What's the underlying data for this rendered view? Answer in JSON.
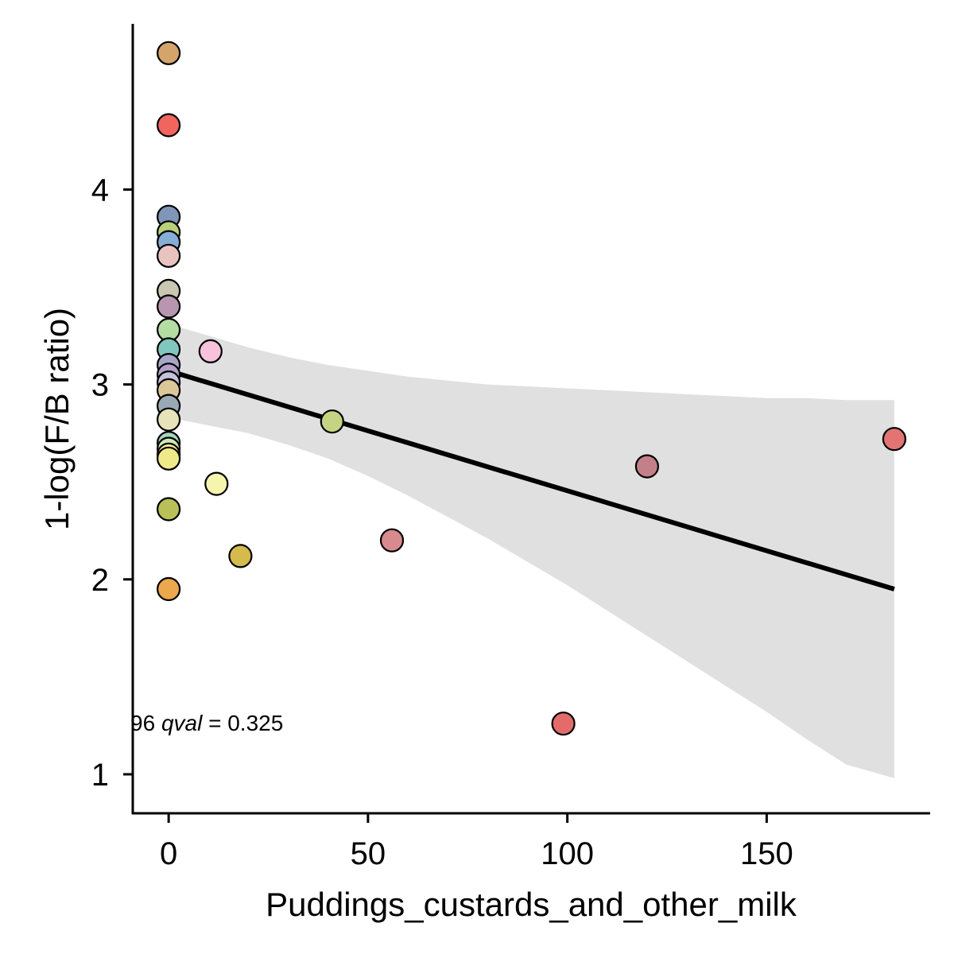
{
  "chart_data": {
    "type": "scatter",
    "xlabel": "Puddings_custards_and_other_milk",
    "ylabel": "1-log(F/B ratio)",
    "xlim": [
      -9,
      191
    ],
    "ylim": [
      0.8,
      4.85
    ],
    "x_ticks": [
      {
        "value": 0,
        "label": "0"
      },
      {
        "value": 50,
        "label": "50"
      },
      {
        "value": 100,
        "label": "100"
      },
      {
        "value": 150,
        "label": "150"
      }
    ],
    "y_ticks": [
      {
        "value": 1,
        "label": "1"
      },
      {
        "value": 2,
        "label": "2"
      },
      {
        "value": 3,
        "label": "3"
      },
      {
        "value": 4,
        "label": "4"
      }
    ],
    "grid": false,
    "legend": "none",
    "points": [
      {
        "x": 0,
        "y": 4.7,
        "color": "#D4A46A"
      },
      {
        "x": 0,
        "y": 4.33,
        "color": "#F0665E"
      },
      {
        "x": 0,
        "y": 3.86,
        "color": "#8096B8"
      },
      {
        "x": 0,
        "y": 3.78,
        "color": "#B9D27A"
      },
      {
        "x": 0,
        "y": 3.73,
        "color": "#86ADD6"
      },
      {
        "x": 0,
        "y": 3.66,
        "color": "#E9C3C0"
      },
      {
        "x": 0,
        "y": 3.48,
        "color": "#C9C7B2"
      },
      {
        "x": 0,
        "y": 3.4,
        "color": "#B896B0"
      },
      {
        "x": 0,
        "y": 3.28,
        "color": "#B4DDA4"
      },
      {
        "x": 0,
        "y": 3.18,
        "color": "#80C7C0"
      },
      {
        "x": 0,
        "y": 3.1,
        "color": "#A7A6C6"
      },
      {
        "x": 0,
        "y": 3.05,
        "color": "#B2A0C8"
      },
      {
        "x": 0,
        "y": 3.01,
        "color": "#C7C2DC"
      },
      {
        "x": 0,
        "y": 2.97,
        "color": "#DCC79A"
      },
      {
        "x": 0,
        "y": 2.89,
        "color": "#9AAAB4"
      },
      {
        "x": 0,
        "y": 2.82,
        "color": "#E6E2BA"
      },
      {
        "x": 0,
        "y": 2.7,
        "color": "#A6D6C2"
      },
      {
        "x": 0,
        "y": 2.67,
        "color": "#CFE8B0"
      },
      {
        "x": 0,
        "y": 2.64,
        "color": "#F7F39E"
      },
      {
        "x": 0,
        "y": 2.62,
        "color": "#F0E98A"
      },
      {
        "x": 0,
        "y": 2.36,
        "color": "#B9C058"
      },
      {
        "x": 0,
        "y": 1.95,
        "color": "#EBA84D"
      },
      {
        "x": 10.5,
        "y": 3.17,
        "color": "#F7C2DC"
      },
      {
        "x": 12,
        "y": 2.49,
        "color": "#F5F5AE"
      },
      {
        "x": 18,
        "y": 2.12,
        "color": "#D5BA4E"
      },
      {
        "x": 41,
        "y": 2.81,
        "color": "#C4D482"
      },
      {
        "x": 56,
        "y": 2.2,
        "color": "#D88A8E"
      },
      {
        "x": 99,
        "y": 1.26,
        "color": "#E36C6A"
      },
      {
        "x": 120,
        "y": 2.58,
        "color": "#C48088"
      },
      {
        "x": 182,
        "y": 2.72,
        "color": "#E37474"
      }
    ],
    "fit_line": {
      "x": [
        0,
        182
      ],
      "y": [
        3.07,
        1.95
      ],
      "color": "#000000"
    },
    "confidence_band": {
      "color": "#E0E0E0",
      "x": [
        0,
        10,
        20,
        30,
        40,
        50,
        60,
        70,
        80,
        90,
        100,
        110,
        120,
        130,
        140,
        150,
        160,
        170,
        182
      ],
      "upper": [
        3.31,
        3.25,
        3.19,
        3.14,
        3.1,
        3.07,
        3.04,
        3.02,
        3.0,
        2.99,
        2.98,
        2.97,
        2.96,
        2.95,
        2.94,
        2.93,
        2.93,
        2.92,
        2.92
      ],
      "lower": [
        2.83,
        2.79,
        2.75,
        2.69,
        2.62,
        2.53,
        2.43,
        2.32,
        2.21,
        2.09,
        1.97,
        1.84,
        1.71,
        1.58,
        1.45,
        1.32,
        1.18,
        1.05,
        0.98
      ]
    },
    "annotation": {
      "prefix": "96 ",
      "label": "qval",
      "value": " = 0.325"
    }
  }
}
